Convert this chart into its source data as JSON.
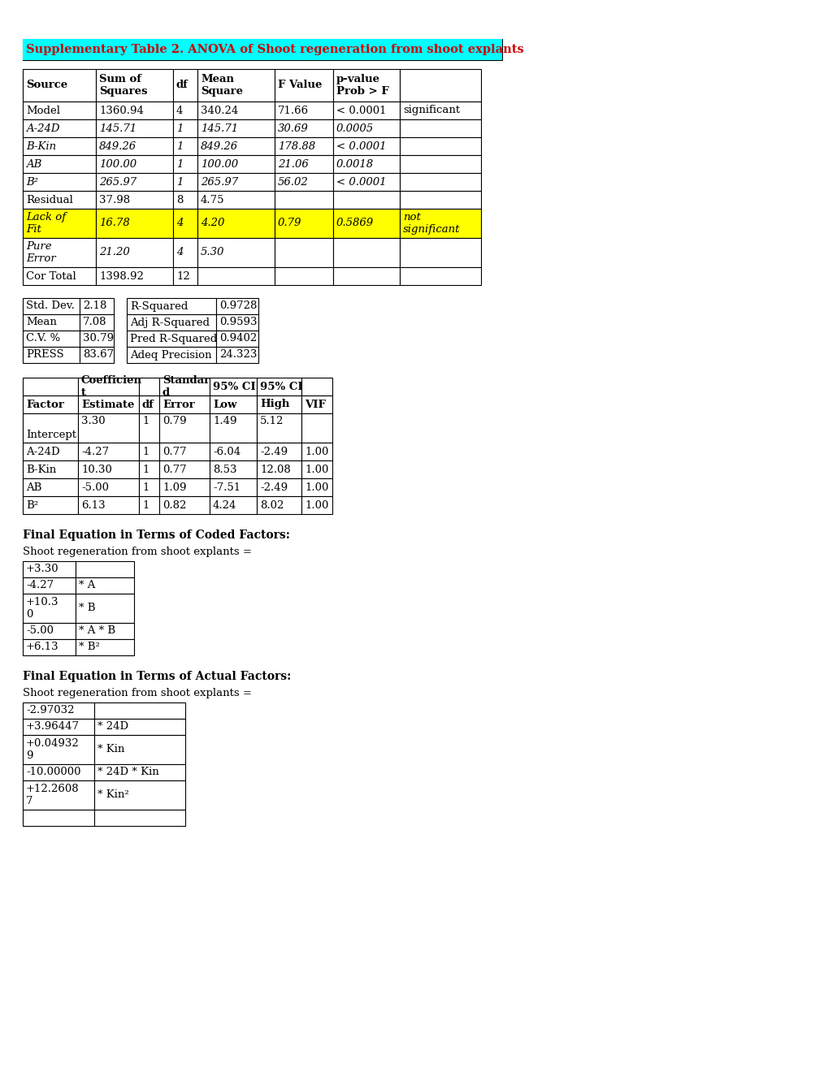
{
  "title": "Supplementary Table 2. ANOVA of Shoot regeneration from shoot explants",
  "title_bg": "#00FFFF",
  "title_color": "#CC0000",
  "title_fontsize": 10.5,
  "page_bg": "#FFFFFF",
  "anova_headers": [
    "Source",
    "Sum of\nSquares",
    "df",
    "Mean\nSquare",
    "F Value",
    "p-value\nProb > F",
    ""
  ],
  "anova_rows": [
    [
      "Model",
      "1360.94",
      "4",
      "340.24",
      "71.66",
      "< 0.0001",
      "significant"
    ],
    [
      "A-24D",
      "145.71",
      "1",
      "145.71",
      "30.69",
      "0.0005",
      ""
    ],
    [
      "B-Kin",
      "849.26",
      "1",
      "849.26",
      "178.88",
      "< 0.0001",
      ""
    ],
    [
      "AB",
      "100.00",
      "1",
      "100.00",
      "21.06",
      "0.0018",
      ""
    ],
    [
      "B²",
      "265.97",
      "1",
      "265.97",
      "56.02",
      "< 0.0001",
      ""
    ],
    [
      "Residual",
      "37.98",
      "8",
      "4.75",
      "",
      "",
      ""
    ],
    [
      "Lack of\nFit",
      "16.78",
      "4",
      "4.20",
      "0.79",
      "0.5869",
      "not\nsignificant"
    ],
    [
      "Pure\nError",
      "21.20",
      "4",
      "5.30",
      "",
      "",
      ""
    ],
    [
      "Cor Total",
      "1398.92",
      "12",
      "",
      "",
      "",
      ""
    ]
  ],
  "anova_italic_rows": [
    1,
    2,
    3,
    4,
    6,
    7
  ],
  "anova_yellow_row": 6,
  "stats_headers": [
    "Std. Dev.",
    "Mean",
    "C.V. %",
    "PRESS"
  ],
  "stats_vals": [
    "2.18",
    "7.08",
    "30.79",
    "83.67"
  ],
  "stats_headers2": [
    "R-Squared",
    "Adj R-Squared",
    "Pred R-Squared",
    "Adeq Precision"
  ],
  "stats_vals2": [
    "0.9728",
    "0.9593",
    "0.9402",
    "24.323"
  ],
  "coeff_headers_row1": [
    "",
    "Coefficien\nt",
    "",
    "Standar\nd",
    "95% CI",
    "95% CI",
    ""
  ],
  "coeff_headers_row2": [
    "Factor",
    "Estimate",
    "df",
    "Error",
    "Low",
    "High",
    "VIF"
  ],
  "coeff_data_rows": [
    [
      "",
      "3.30",
      "1",
      "0.79",
      "1.49",
      "5.12",
      ""
    ],
    [
      "Intercept",
      "",
      "",
      "",
      "",
      "",
      ""
    ],
    [
      "A-24D",
      "-4.27",
      "1",
      "0.77",
      "-6.04",
      "-2.49",
      "1.00"
    ],
    [
      "B-Kin",
      "10.30",
      "1",
      "0.77",
      "8.53",
      "12.08",
      "1.00"
    ],
    [
      "AB",
      "-5.00",
      "1",
      "1.09",
      "-7.51",
      "-2.49",
      "1.00"
    ],
    [
      "B²",
      "6.13",
      "1",
      "0.82",
      "4.24",
      "8.02",
      "1.00"
    ]
  ],
  "coded_label1": "Final Equation in Terms of Coded Factors:",
  "coded_label2": "Shoot regeneration from shoot explants =",
  "coded_rows": [
    [
      "+3.30",
      ""
    ],
    [
      "-4.27",
      "* A"
    ],
    [
      "+10.3\n0",
      "* B"
    ],
    [
      "-5.00",
      "* A * B"
    ],
    [
      "+6.13",
      "* B²"
    ]
  ],
  "coded_row_heights": [
    20,
    20,
    36,
    20,
    20
  ],
  "actual_label1": "Final Equation in Terms of Actual Factors:",
  "actual_label2": "Shoot regeneration from shoot explants =",
  "actual_rows": [
    [
      "-2.97032",
      ""
    ],
    [
      "+3.96447",
      "* 24D"
    ],
    [
      "+0.04932\n9",
      "* Kin"
    ],
    [
      "-10.00000",
      "* 24D * Kin"
    ],
    [
      "+12.2608\n7",
      "* Kin²"
    ],
    [
      "",
      ""
    ]
  ],
  "actual_row_heights": [
    20,
    20,
    36,
    20,
    36,
    20
  ]
}
